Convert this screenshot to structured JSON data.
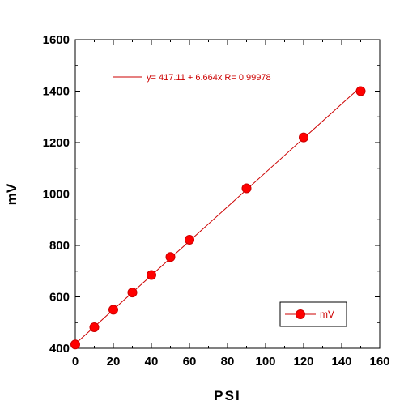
{
  "chart_data": {
    "type": "scatter",
    "title": "",
    "xlabel": "PSI",
    "ylabel": "mV",
    "xlim": [
      0,
      160
    ],
    "ylim": [
      400,
      1600
    ],
    "x_ticks": [
      "0",
      "20",
      "40",
      "60",
      "80",
      "100",
      "120",
      "140",
      "160"
    ],
    "y_ticks": [
      "400",
      "600",
      "800",
      "1000",
      "1200",
      "1400",
      "1600"
    ],
    "grid": false,
    "legend_position": "bottom-right",
    "series": [
      {
        "name": "mV",
        "color": "#ff0000",
        "x": [
          0,
          10,
          20,
          30,
          40,
          50,
          60,
          90,
          120,
          150
        ],
        "y": [
          415,
          482,
          550,
          617,
          685,
          755,
          822,
          1022,
          1220,
          1400
        ]
      }
    ],
    "fit": {
      "intercept": 417.11,
      "slope": 6.664,
      "color": "#cc0000",
      "label": "y= 417.11 + 6.664x   R= 0.99978"
    }
  }
}
